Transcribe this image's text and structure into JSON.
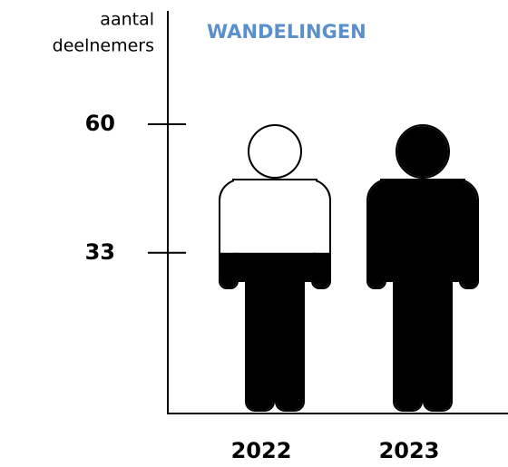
{
  "chart_data": {
    "type": "pictogram",
    "title": "WANDELINGEN",
    "y_label": [
      "aantal",
      "deelnemers"
    ],
    "categories": [
      "2022",
      "2023"
    ],
    "values": [
      33,
      60
    ],
    "color": "#000000",
    "ylim": [
      0,
      60
    ],
    "yticks": [
      33,
      60
    ]
  }
}
